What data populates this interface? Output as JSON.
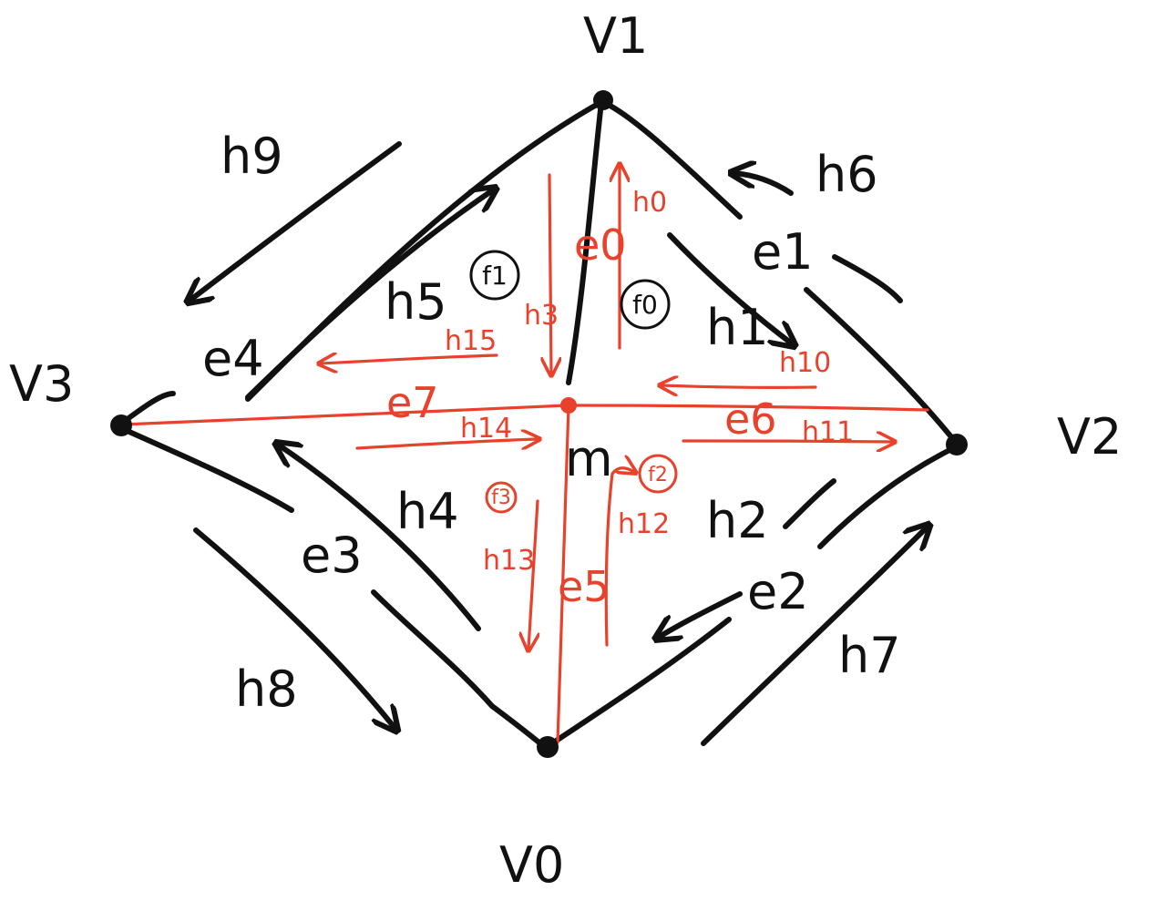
{
  "vertices": [
    {
      "id": "v0",
      "label": "V0"
    },
    {
      "id": "v1",
      "label": "V1"
    },
    {
      "id": "v2",
      "label": "V2"
    },
    {
      "id": "v3",
      "label": "V3"
    },
    {
      "id": "center",
      "label": "m"
    }
  ],
  "edges": [
    {
      "id": "e0",
      "label": "e0",
      "color": "black"
    },
    {
      "id": "e1",
      "label": "e1",
      "color": "black"
    },
    {
      "id": "e2",
      "label": "e2",
      "color": "black"
    },
    {
      "id": "e3",
      "label": "e3",
      "color": "black"
    },
    {
      "id": "e4",
      "label": "e4",
      "color": "black"
    },
    {
      "id": "e5",
      "label": "e5",
      "color": "red"
    },
    {
      "id": "e6",
      "label": "e6",
      "color": "red"
    },
    {
      "id": "e7",
      "label": "e7",
      "color": "red"
    }
  ],
  "halfedges": [
    {
      "label": "h0",
      "color": "red"
    },
    {
      "label": "h1",
      "color": "black"
    },
    {
      "label": "h2",
      "color": "black"
    },
    {
      "label": "h3",
      "color": "red"
    },
    {
      "label": "h4",
      "color": "black"
    },
    {
      "label": "h5",
      "color": "black"
    },
    {
      "label": "h6",
      "color": "black"
    },
    {
      "label": "h7",
      "color": "black"
    },
    {
      "label": "h8",
      "color": "black"
    },
    {
      "label": "h9",
      "color": "black"
    },
    {
      "label": "h10",
      "color": "red"
    },
    {
      "label": "h11",
      "color": "red"
    },
    {
      "label": "h12",
      "color": "red"
    },
    {
      "label": "h13",
      "color": "red"
    },
    {
      "label": "h14",
      "color": "red"
    },
    {
      "label": "h15",
      "color": "red"
    }
  ],
  "faces": [
    {
      "label": "f0",
      "color": "black"
    },
    {
      "label": "f1",
      "color": "black"
    },
    {
      "label": "f2",
      "color": "red"
    },
    {
      "label": "f3",
      "color": "red"
    }
  ],
  "colors": {
    "black_ink": "#111111",
    "red_ink": "#e8412c",
    "background": "#ffffff"
  }
}
